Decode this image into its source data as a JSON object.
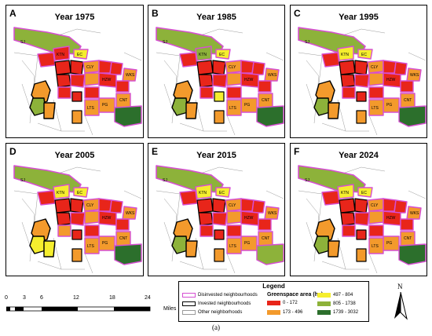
{
  "panels": [
    {
      "letter": "A",
      "title": "Year 1975"
    },
    {
      "letter": "B",
      "title": "Year 1985"
    },
    {
      "letter": "C",
      "title": "Year 1995"
    },
    {
      "letter": "D",
      "title": "Year 2005"
    },
    {
      "letter": "E",
      "title": "Year 2015"
    },
    {
      "letter": "F",
      "title": "Year 2024"
    }
  ],
  "neighbourhood_labels": [
    "SJ",
    "KTN",
    "EC",
    "CLY",
    "WKS",
    "HZW",
    "CNT",
    "PG",
    "LTS"
  ],
  "legend": {
    "title": "Legend",
    "disinvested": "Disinvested neighbourhoods",
    "invested": "Invested neighbourhoods",
    "other": "Other neighborhoods",
    "greenspace_header": "Greenspace area (ha)",
    "classes": [
      {
        "label": "0 - 172",
        "color": "#e8251a"
      },
      {
        "label": "173 - 496",
        "color": "#f39a2c"
      },
      {
        "label": "497 - 804",
        "color": "#f5ee2e"
      },
      {
        "label": "805 - 1738",
        "color": "#8db23a"
      },
      {
        "label": "1739 - 3032",
        "color": "#2c6f2c"
      }
    ]
  },
  "colors": {
    "disinvested_outline": "#d64fd2",
    "invested_outline": "#000000",
    "other_outline": "#9a9a9a"
  },
  "scale": {
    "ticks": [
      "0",
      "3",
      "6",
      "12",
      "18",
      "24"
    ],
    "unit": "Miles"
  },
  "north_label": "N",
  "caption": "(a)"
}
